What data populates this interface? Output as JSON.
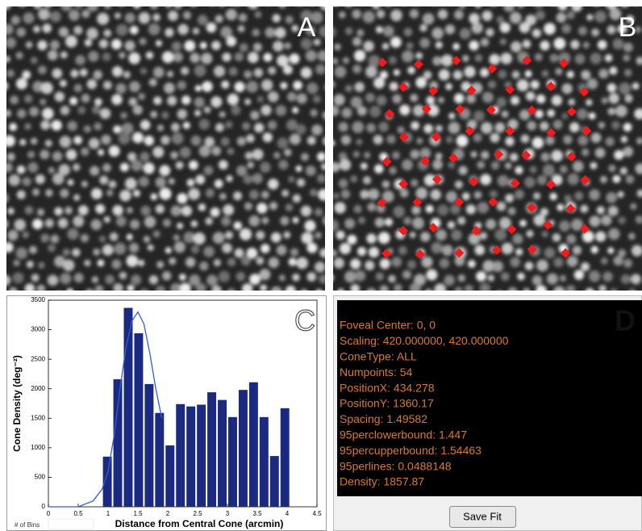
{
  "panels": {
    "a": {
      "label": "A"
    },
    "b": {
      "label": "B"
    },
    "c": {
      "label": "C"
    },
    "d": {
      "label": "D"
    }
  },
  "chart_data": {
    "type": "histogram",
    "xlabel": "Distance from Central Cone (arcmin)",
    "ylabel": "Cone Density (deg⁻²)",
    "bins": [
      0.9,
      1.075,
      1.25,
      1.425,
      1.6,
      1.775,
      1.95,
      2.125,
      2.3,
      2.475,
      2.65,
      2.825,
      3,
      3.175,
      3.35,
      3.525,
      3.7,
      3.875,
      4.05
    ],
    "values": [
      850,
      2160,
      3370,
      2940,
      2080,
      1590,
      1040,
      1740,
      1700,
      1730,
      1940,
      1810,
      1520,
      1980,
      2110,
      1520,
      860,
      1670
    ],
    "color": "#1b2a80",
    "fit": {
      "x": [
        0,
        0.5,
        0.75,
        0.9,
        1.0,
        1.1,
        1.2,
        1.3,
        1.4,
        1.5,
        1.6,
        1.7,
        1.8,
        1.9
      ],
      "values": [
        0,
        0,
        100,
        300,
        600,
        1200,
        2000,
        2700,
        3150,
        3300,
        3100,
        2600,
        2000,
        1500
      ],
      "color": "#2f5fd8"
    },
    "xlim": [
      0,
      4.5
    ],
    "xticks": [
      0,
      0.5,
      1,
      1.5,
      2,
      2.5,
      3,
      3.5,
      4,
      4.5
    ],
    "ylim": [
      0,
      3500
    ],
    "yticks": [
      0,
      500,
      1000,
      1500,
      2000,
      2500,
      3000,
      3500
    ]
  },
  "bins_label": "# of Bins",
  "fit_output": {
    "lines": [
      "Foveal Center: 0, 0",
      "Scaling: 420.000000, 420.000000",
      "ConeType: ALL",
      "Numpoints: 54",
      "PositionX: 434.278",
      "PositionY: 1360.17",
      "Spacing: 1.49582",
      "95perclowerbound: 1.447",
      "95percupperbound: 1.54463",
      "95perlines: 0.0488148",
      "Density: 1857.87"
    ]
  },
  "save_button": "Save Fit"
}
